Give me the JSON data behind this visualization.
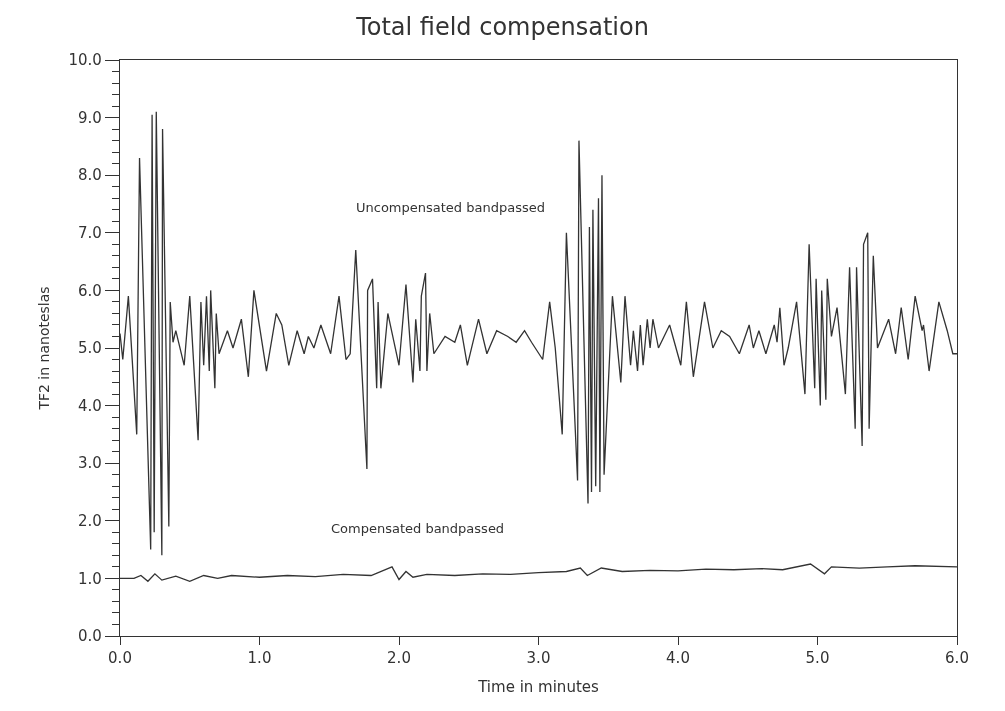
{
  "chart_data": {
    "type": "line",
    "title": "Total field compensation",
    "xlabel": "Time in minutes",
    "ylabel": "TF2 in nanoteslas",
    "xlim": [
      0,
      6
    ],
    "ylim": [
      0,
      10
    ],
    "xticks": [
      {
        "value": 0,
        "label": "0.0"
      },
      {
        "value": 1,
        "label": "1.0"
      },
      {
        "value": 2,
        "label": "2.0"
      },
      {
        "value": 3,
        "label": "3.0"
      },
      {
        "value": 4,
        "label": "4.0"
      },
      {
        "value": 5,
        "label": "5.0"
      },
      {
        "value": 6,
        "label": "6.0"
      }
    ],
    "yticks": [
      {
        "value": 0,
        "label": "0.0"
      },
      {
        "value": 1,
        "label": "1.0"
      },
      {
        "value": 2,
        "label": "2.0"
      },
      {
        "value": 3,
        "label": "3.0"
      },
      {
        "value": 4,
        "label": "4.0"
      },
      {
        "value": 5,
        "label": "5.0"
      },
      {
        "value": 6,
        "label": "6.0"
      },
      {
        "value": 7,
        "label": "7.0"
      },
      {
        "value": 8,
        "label": "8.0"
      },
      {
        "value": 9,
        "label": "9.0"
      },
      {
        "value": 10,
        "label": "10.0"
      }
    ],
    "grid": false,
    "legend": false,
    "marker": "none",
    "line_style": "solid",
    "series": [
      {
        "name": "Uncompensated bandpassed",
        "color": "#333333",
        "x": [
          0.0,
          0.02,
          0.06,
          0.12,
          0.14,
          0.22,
          0.23,
          0.245,
          0.26,
          0.3,
          0.305,
          0.35,
          0.36,
          0.38,
          0.4,
          0.46,
          0.5,
          0.56,
          0.58,
          0.6,
          0.62,
          0.64,
          0.65,
          0.68,
          0.69,
          0.71,
          0.77,
          0.81,
          0.87,
          0.92,
          0.96,
          1.05,
          1.12,
          1.16,
          1.21,
          1.27,
          1.32,
          1.35,
          1.39,
          1.44,
          1.51,
          1.57,
          1.62,
          1.65,
          1.69,
          1.77,
          1.775,
          1.81,
          1.84,
          1.85,
          1.87,
          1.92,
          2.0,
          2.05,
          2.1,
          2.12,
          2.15,
          2.16,
          2.19,
          2.2,
          2.22,
          2.25,
          2.33,
          2.4,
          2.44,
          2.49,
          2.57,
          2.63,
          2.7,
          2.78,
          2.84,
          2.9,
          2.95,
          3.03,
          3.08,
          3.12,
          3.17,
          3.2,
          3.28,
          3.29,
          3.355,
          3.365,
          3.38,
          3.39,
          3.41,
          3.43,
          3.44,
          3.455,
          3.47,
          3.53,
          3.59,
          3.62,
          3.66,
          3.68,
          3.71,
          3.73,
          3.75,
          3.78,
          3.8,
          3.82,
          3.86,
          3.94,
          4.02,
          4.06,
          4.11,
          4.19,
          4.25,
          4.31,
          4.37,
          4.44,
          4.51,
          4.54,
          4.58,
          4.63,
          4.69,
          4.71,
          4.73,
          4.76,
          4.79,
          4.85,
          4.91,
          4.94,
          4.98,
          4.99,
          5.02,
          5.03,
          5.06,
          5.07,
          5.1,
          5.14,
          5.2,
          5.23,
          5.27,
          5.28,
          5.32,
          5.33,
          5.36,
          5.37,
          5.4,
          5.43,
          5.51,
          5.56,
          5.6,
          5.65,
          5.7,
          5.75,
          5.76,
          5.8,
          5.87,
          5.93,
          5.97,
          6.0
        ],
        "values": [
          5.25,
          4.8,
          5.9,
          3.5,
          8.3,
          1.5,
          9.05,
          1.8,
          9.1,
          1.4,
          8.8,
          1.9,
          5.8,
          5.1,
          5.3,
          4.7,
          5.9,
          3.4,
          5.8,
          4.7,
          5.9,
          4.6,
          6.0,
          4.3,
          5.6,
          4.9,
          5.3,
          5.0,
          5.5,
          4.5,
          6.0,
          4.6,
          5.6,
          5.4,
          4.7,
          5.3,
          4.9,
          5.2,
          5.0,
          5.4,
          4.9,
          5.9,
          4.8,
          4.9,
          6.7,
          2.9,
          6.0,
          6.2,
          4.3,
          5.8,
          4.3,
          5.6,
          4.7,
          6.1,
          4.4,
          5.5,
          4.6,
          5.9,
          6.3,
          4.6,
          5.6,
          4.9,
          5.2,
          5.1,
          5.4,
          4.7,
          5.5,
          4.9,
          5.3,
          5.2,
          5.1,
          5.3,
          5.1,
          4.8,
          5.8,
          5.0,
          3.5,
          7.0,
          2.7,
          8.6,
          2.3,
          7.1,
          2.5,
          7.4,
          2.6,
          7.6,
          2.5,
          8.0,
          2.8,
          5.9,
          4.4,
          5.9,
          4.7,
          5.3,
          4.6,
          5.4,
          4.7,
          5.5,
          5.0,
          5.5,
          5.0,
          5.4,
          4.7,
          5.8,
          4.5,
          5.8,
          5.0,
          5.3,
          5.2,
          4.9,
          5.4,
          5.0,
          5.3,
          4.9,
          5.4,
          5.1,
          5.7,
          4.7,
          5.0,
          5.8,
          4.2,
          6.8,
          4.3,
          6.2,
          4.0,
          6.0,
          4.1,
          6.2,
          5.2,
          5.7,
          4.2,
          6.4,
          3.6,
          6.4,
          3.3,
          6.8,
          7.0,
          3.6,
          6.6,
          5.0,
          5.5,
          4.9,
          5.7,
          4.8,
          5.9,
          5.3,
          5.4,
          4.6,
          5.8,
          5.3,
          4.9,
          4.9
        ]
      },
      {
        "name": "Compensated bandpassed",
        "color": "#333333",
        "x": [
          0.0,
          0.1,
          0.15,
          0.2,
          0.25,
          0.3,
          0.4,
          0.5,
          0.6,
          0.7,
          0.8,
          1.0,
          1.2,
          1.4,
          1.6,
          1.8,
          1.95,
          2.0,
          2.05,
          2.1,
          2.2,
          2.4,
          2.6,
          2.8,
          3.0,
          3.2,
          3.3,
          3.35,
          3.45,
          3.6,
          3.8,
          4.0,
          4.2,
          4.4,
          4.6,
          4.75,
          4.95,
          5.05,
          5.1,
          5.3,
          5.5,
          5.7,
          6.0
        ],
        "values": [
          1.0,
          1.0,
          1.05,
          0.95,
          1.08,
          0.97,
          1.04,
          0.95,
          1.05,
          1.0,
          1.05,
          1.02,
          1.05,
          1.03,
          1.07,
          1.05,
          1.2,
          0.98,
          1.12,
          1.02,
          1.07,
          1.05,
          1.08,
          1.07,
          1.1,
          1.12,
          1.18,
          1.05,
          1.18,
          1.12,
          1.14,
          1.13,
          1.16,
          1.15,
          1.17,
          1.15,
          1.25,
          1.08,
          1.2,
          1.18,
          1.2,
          1.22,
          1.2
        ]
      }
    ]
  }
}
